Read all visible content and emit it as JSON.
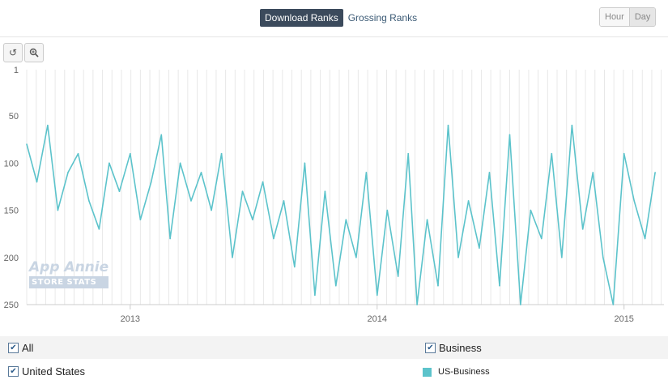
{
  "tabs": {
    "download_label": "Download Ranks",
    "grossing_label": "Grossing Ranks"
  },
  "granularity": {
    "hour_label": "Hour",
    "day_label": "Day",
    "selected": "Day"
  },
  "toolbar": {
    "reset_icon": "reset-icon",
    "zoom_icon": "zoom-icon"
  },
  "watermark": {
    "line1": "App Annie",
    "line2": "STORE STATS"
  },
  "legend": {
    "filter_all": "All",
    "filter_category": "Business",
    "filter_country": "United States",
    "series_label": "US-Business"
  },
  "colors": {
    "series": "#5cc3cb",
    "accent": "#3b4a5c"
  },
  "chart_data": {
    "type": "line",
    "title": "",
    "xlabel": "",
    "ylabel": "",
    "y_reversed": true,
    "ylim": [
      1,
      250
    ],
    "yticks": [
      1,
      50,
      100,
      150,
      200,
      250
    ],
    "x_range": [
      "2012-08-01",
      "2015-03-01"
    ],
    "xticks": [
      {
        "label": "2013",
        "date": "2013-01-01"
      },
      {
        "label": "2014",
        "date": "2014-01-01"
      },
      {
        "label": "2015",
        "date": "2015-01-01"
      }
    ],
    "grid": "vertical",
    "series": [
      {
        "name": "US-Business",
        "x": [
          "2012-08-01",
          "2012-08-16",
          "2012-09-01",
          "2012-09-16",
          "2012-10-01",
          "2012-10-16",
          "2012-11-01",
          "2012-11-16",
          "2012-12-01",
          "2012-12-16",
          "2013-01-01",
          "2013-01-16",
          "2013-02-01",
          "2013-02-16",
          "2013-03-01",
          "2013-03-16",
          "2013-04-01",
          "2013-04-16",
          "2013-05-01",
          "2013-05-16",
          "2013-06-01",
          "2013-06-16",
          "2013-07-01",
          "2013-07-16",
          "2013-08-01",
          "2013-08-16",
          "2013-09-01",
          "2013-09-16",
          "2013-10-01",
          "2013-10-16",
          "2013-11-01",
          "2013-11-16",
          "2013-12-01",
          "2013-12-16",
          "2014-01-01",
          "2014-01-16",
          "2014-02-01",
          "2014-02-16",
          "2014-03-01",
          "2014-03-16",
          "2014-04-01",
          "2014-04-16",
          "2014-05-01",
          "2014-05-16",
          "2014-06-01",
          "2014-06-16",
          "2014-07-01",
          "2014-07-16",
          "2014-08-01",
          "2014-08-16",
          "2014-09-01",
          "2014-09-16",
          "2014-10-01",
          "2014-10-16",
          "2014-11-01",
          "2014-11-16",
          "2014-12-01",
          "2014-12-16",
          "2015-01-01",
          "2015-01-16",
          "2015-02-01",
          "2015-02-16"
        ],
        "values": [
          80,
          120,
          60,
          150,
          110,
          90,
          140,
          170,
          100,
          130,
          90,
          160,
          120,
          70,
          180,
          100,
          140,
          110,
          150,
          90,
          200,
          130,
          160,
          120,
          180,
          140,
          210,
          100,
          240,
          130,
          230,
          160,
          200,
          110,
          240,
          150,
          220,
          90,
          250,
          160,
          230,
          60,
          200,
          140,
          190,
          110,
          230,
          70,
          250,
          150,
          180,
          90,
          200,
          60,
          170,
          110,
          200,
          250,
          90,
          140,
          180,
          110
        ]
      }
    ]
  }
}
